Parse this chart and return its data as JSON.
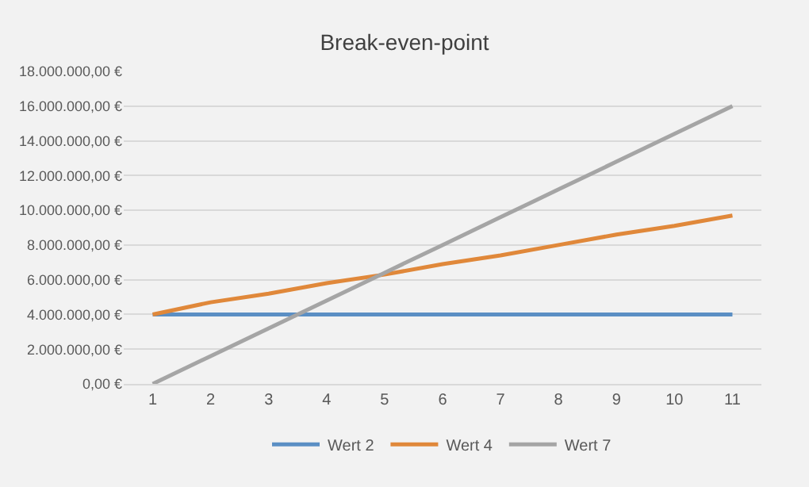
{
  "chart_data": {
    "type": "line",
    "title": "Break-even-point",
    "categories": [
      "1",
      "2",
      "3",
      "4",
      "5",
      "6",
      "7",
      "8",
      "9",
      "10",
      "11"
    ],
    "series": [
      {
        "name": "Wert 2",
        "color": "#5b8fc4",
        "values": [
          4000000,
          4000000,
          4000000,
          4000000,
          4000000,
          4000000,
          4000000,
          4000000,
          4000000,
          4000000,
          4000000
        ]
      },
      {
        "name": "Wert 4",
        "color": "#e0883a",
        "values": [
          4000000,
          4700000,
          5200000,
          5800000,
          6300000,
          6900000,
          7400000,
          8000000,
          8600000,
          9100000,
          9700000
        ]
      },
      {
        "name": "Wert 7",
        "color": "#a5a5a5",
        "values": [
          0,
          1600000,
          3200000,
          4800000,
          6400000,
          8000000,
          9600000,
          11200000,
          12800000,
          14400000,
          16000000
        ]
      }
    ],
    "ylim": [
      0,
      18000000
    ],
    "yticks": [
      {
        "value": 0,
        "label": "0,00 €"
      },
      {
        "value": 2000000,
        "label": "2.000.000,00 €"
      },
      {
        "value": 4000000,
        "label": "4.000.000,00 €"
      },
      {
        "value": 6000000,
        "label": "6.000.000,00 €"
      },
      {
        "value": 8000000,
        "label": "8.000.000,00 €"
      },
      {
        "value": 10000000,
        "label": "10.000.000,00 €"
      },
      {
        "value": 12000000,
        "label": "12.000.000,00 €"
      },
      {
        "value": 14000000,
        "label": "14.000.000,00 €"
      },
      {
        "value": 16000000,
        "label": "16.000.000,00 €"
      },
      {
        "value": 18000000,
        "label": "18.000.000,00 €"
      }
    ],
    "grid": "y",
    "legend": "bottom",
    "marker": "none",
    "line_style": "solid"
  }
}
